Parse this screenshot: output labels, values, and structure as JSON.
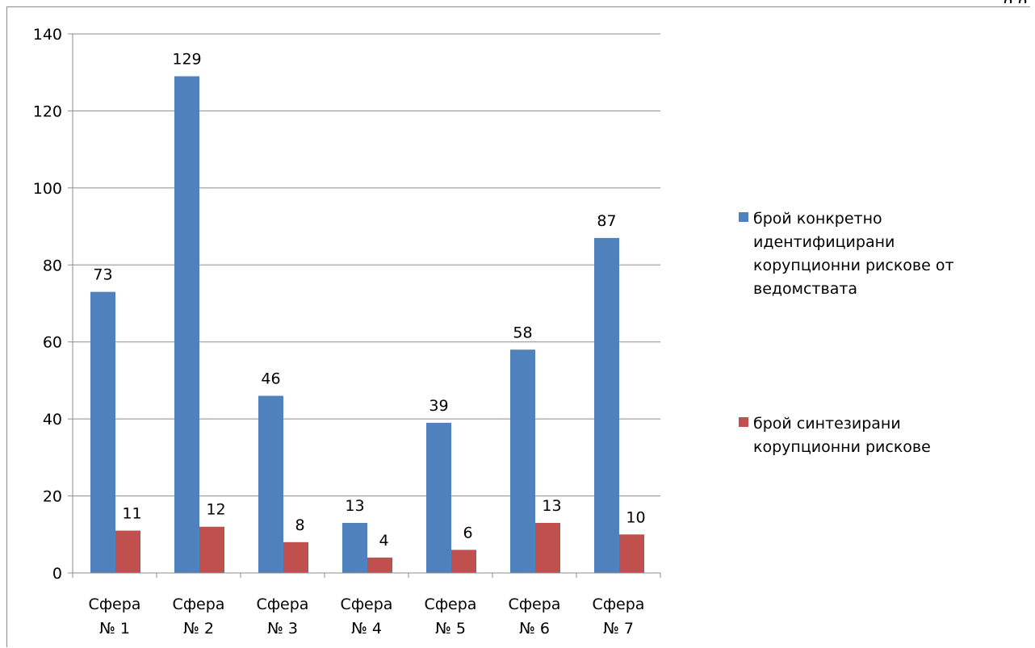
{
  "corner_fragment": "р р",
  "colors": {
    "series1": "#4f81bd",
    "series2": "#c0504d",
    "grid": "#8c8c8c"
  },
  "chart_data": {
    "type": "bar",
    "categories": [
      "Сфера № 1",
      "Сфера № 2",
      "Сфера № 3",
      "Сфера № 4",
      "Сфера № 5",
      "Сфера № 6",
      "Сфера № 7"
    ],
    "category_lines": [
      [
        "Сфера",
        "№ 1"
      ],
      [
        "Сфера",
        "№ 2"
      ],
      [
        "Сфера",
        "№ 3"
      ],
      [
        "Сфера",
        "№ 4"
      ],
      [
        "Сфера",
        "№ 5"
      ],
      [
        "Сфера",
        "№ 6"
      ],
      [
        "Сфера",
        "№ 7"
      ]
    ],
    "series": [
      {
        "name": "брой конкретно идентифицирани корупционни рискове от ведомствата",
        "values": [
          73,
          129,
          46,
          13,
          39,
          58,
          87
        ]
      },
      {
        "name": "брой синтезирани корупционни рискове",
        "values": [
          11,
          12,
          8,
          4,
          6,
          13,
          10
        ]
      }
    ],
    "ylim": [
      0,
      140
    ],
    "yticks": [
      "0",
      "20",
      "40",
      "60",
      "80",
      "100",
      "120",
      "140"
    ],
    "grid": true,
    "legend": "right",
    "title": "",
    "xlabel": "",
    "ylabel": ""
  },
  "legend_lines": [
    [
      "брой конкретно",
      "идентифицирани",
      "корупционни рискове от",
      "ведомствата"
    ],
    [
      "брой синтезирани",
      "корупционни рискове"
    ]
  ]
}
